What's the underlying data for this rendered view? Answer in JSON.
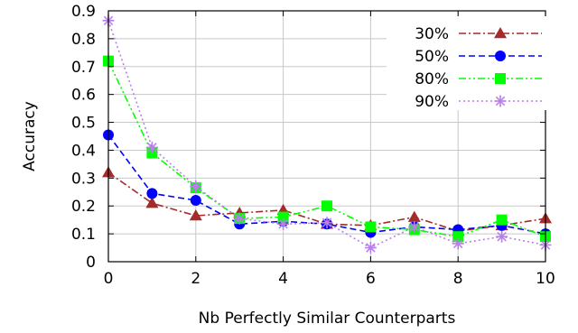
{
  "chart_data": {
    "type": "line",
    "xlabel": "Nb Perfectly Similar Counterparts",
    "ylabel": "Accuracy",
    "x": [
      0,
      1,
      2,
      3,
      4,
      5,
      6,
      7,
      8,
      9,
      10
    ],
    "xticks": [
      0,
      2,
      4,
      6,
      8,
      10
    ],
    "xtick_labels": [
      "0",
      "2",
      "4",
      "6",
      "8",
      "10"
    ],
    "yticks": [
      0,
      0.1,
      0.2,
      0.3,
      0.4,
      0.5,
      0.6,
      0.7,
      0.8,
      0.9
    ],
    "ytick_labels": [
      "0",
      "0.1",
      "0.2",
      "0.3",
      "0.4",
      "0.5",
      "0.6",
      "0.7",
      "0.8",
      "0.9"
    ],
    "xlim": [
      0,
      10
    ],
    "ylim": [
      0,
      0.9
    ],
    "grid": true,
    "legend_position": "top-right",
    "series": [
      {
        "name": "30%",
        "color": "#a52a2a",
        "marker": "triangle",
        "dash": "dash-dot",
        "values": [
          0.32,
          0.21,
          0.165,
          0.175,
          0.185,
          0.135,
          0.13,
          0.16,
          0.11,
          0.13,
          0.155
        ]
      },
      {
        "name": "50%",
        "color": "#0000ff",
        "marker": "circle",
        "dash": "dashed",
        "values": [
          0.455,
          0.245,
          0.22,
          0.135,
          0.145,
          0.135,
          0.105,
          0.125,
          0.115,
          0.13,
          0.1
        ]
      },
      {
        "name": "80%",
        "color": "#00ff00",
        "marker": "square",
        "dash": "dash-dot-dot",
        "values": [
          0.72,
          0.39,
          0.265,
          0.155,
          0.16,
          0.2,
          0.125,
          0.115,
          0.09,
          0.15,
          0.09
        ]
      },
      {
        "name": "90%",
        "color": "#b87fe8",
        "marker": "star",
        "dash": "dotted",
        "values": [
          0.865,
          0.41,
          0.27,
          0.155,
          0.135,
          0.14,
          0.05,
          0.125,
          0.065,
          0.09,
          0.06
        ]
      }
    ]
  }
}
